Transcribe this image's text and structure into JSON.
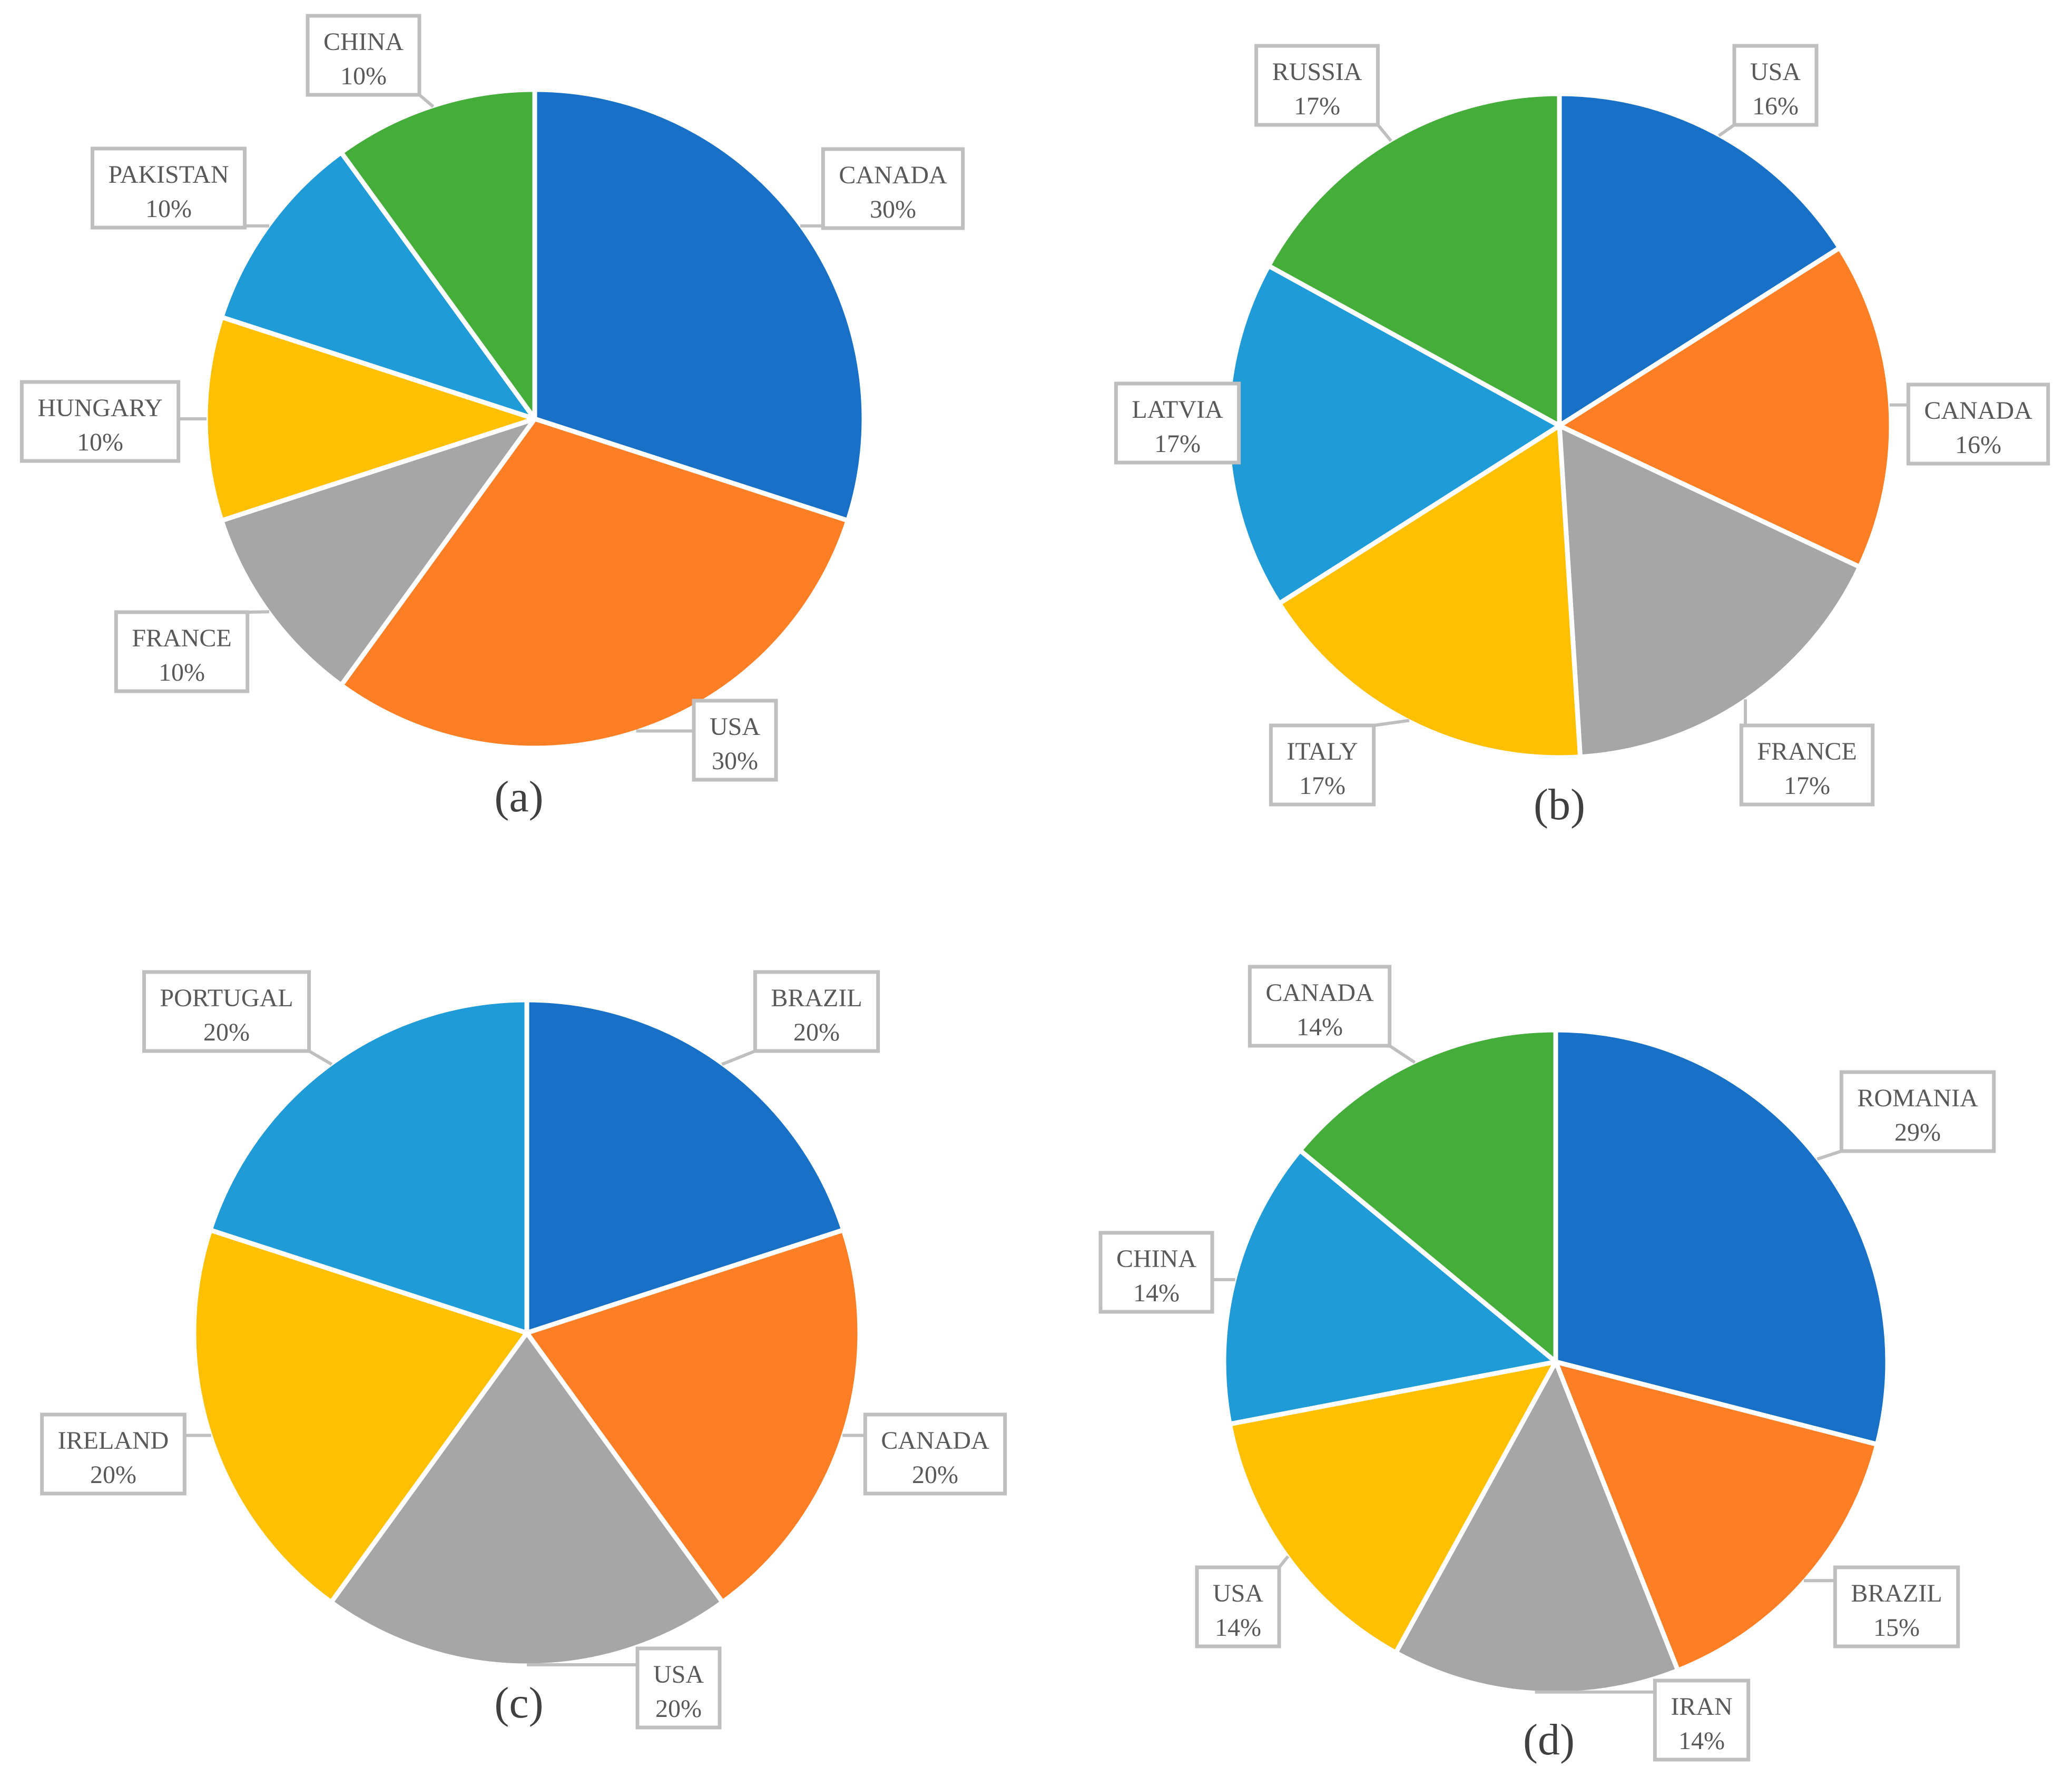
{
  "chart_data": [
    {
      "type": "pie",
      "caption": "(a)",
      "start_angle_deg": 0,
      "direction": "clockwise",
      "categories": [
        "CANADA",
        "USA",
        "FRANCE",
        "HUNGARY",
        "PAKISTAN",
        "CHINA"
      ],
      "values": [
        30,
        30,
        10,
        10,
        10,
        10
      ],
      "value_labels": [
        "30%",
        "30%",
        "10%",
        "10%",
        "10%",
        "10%"
      ],
      "colors": [
        "#1871C6",
        "#FD7F25",
        "#A6A6A6",
        "#FFC000",
        "#1F9BD8",
        "#45AE3A"
      ]
    },
    {
      "type": "pie",
      "caption": "(b)",
      "start_angle_deg": 0,
      "direction": "clockwise",
      "categories": [
        "USA",
        "CANADA",
        "FRANCE",
        "ITALY",
        "LATVIA",
        "RUSSIA"
      ],
      "values": [
        16,
        16,
        17,
        17,
        17,
        17
      ],
      "value_labels": [
        "16%",
        "16%",
        "17%",
        "17%",
        "17%",
        "17%"
      ],
      "colors": [
        "#1871C6",
        "#FD7F25",
        "#A6A6A6",
        "#FFC000",
        "#1F9BD8",
        "#45AE3A"
      ]
    },
    {
      "type": "pie",
      "caption": "(c)",
      "start_angle_deg": 0,
      "direction": "clockwise",
      "categories": [
        "BRAZIL",
        "CANADA",
        "USA",
        "IRELAND",
        "PORTUGAL"
      ],
      "values": [
        20,
        20,
        20,
        20,
        20
      ],
      "value_labels": [
        "20%",
        "20%",
        "20%",
        "20%",
        "20%"
      ],
      "colors": [
        "#1871C6",
        "#FD7F25",
        "#A6A6A6",
        "#FFC000",
        "#1F9BD8"
      ]
    },
    {
      "type": "pie",
      "caption": "(d)",
      "start_angle_deg": 0,
      "direction": "clockwise",
      "categories": [
        "ROMANIA",
        "BRAZIL",
        "IRAN",
        "USA",
        "CHINA",
        "CANADA"
      ],
      "values": [
        29,
        15,
        14,
        14,
        14,
        14
      ],
      "value_labels": [
        "29%",
        "15%",
        "14%",
        "14%",
        "14%",
        "14%"
      ],
      "colors": [
        "#1871C6",
        "#FD7F25",
        "#A6A6A6",
        "#FFC000",
        "#1F9BD8",
        "#45AE3A"
      ]
    }
  ]
}
